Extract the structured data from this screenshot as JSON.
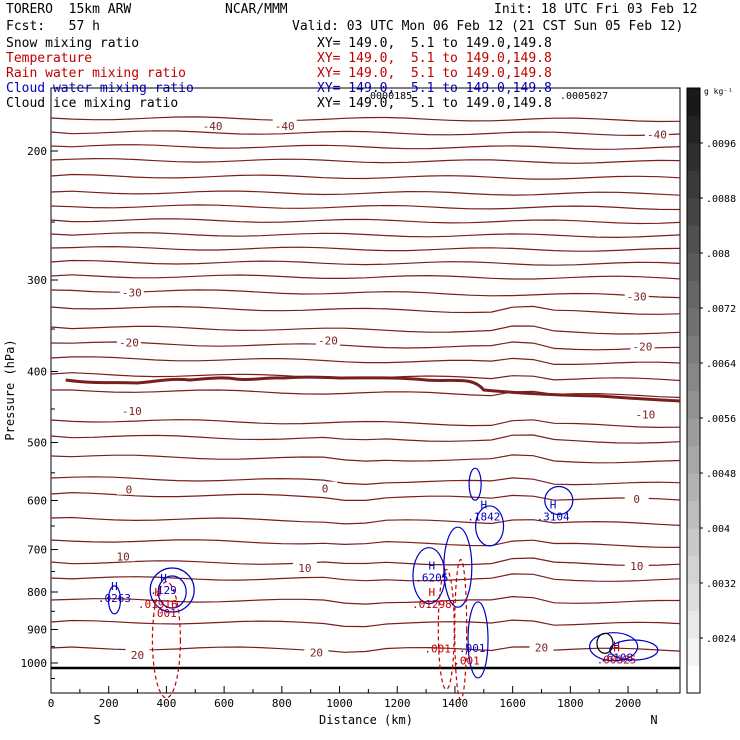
{
  "header": {
    "model": "TORERO  15km ARW",
    "center": "NCAR/MMM",
    "init": "Init: 18 UTC Fri 03 Feb 12",
    "fcst": "Fcst:   57 h",
    "valid": "Valid: 03 UTC Mon 06 Feb 12 (21 CST Sun 05 Feb 12)"
  },
  "fields": [
    {
      "name": "Snow mixing ratio",
      "xy": "",
      "color": "#000000"
    },
    {
      "name": "Temperature",
      "xy": "XY= 149.0,  5.1 to 149.0,149.8",
      "color": "#c00000"
    },
    {
      "name": "Rain water mixing ratio",
      "xy": "XY= 149.0,  5.1 to 149.0,149.8",
      "color": "#c00000"
    },
    {
      "name": "Cloud water mixing ratio",
      "xy": "XY= 149.0,  5.1 to 149.0,149.8",
      "color": "#0000c0"
    },
    {
      "name": "Cloud ice mixing ratio",
      "xy": "XY= 149.0,  5.1 to 149.0,149.8",
      "color": "#000000"
    }
  ],
  "first_xy": "XY= 149.0,  5.1 to 149.0,149.8",
  "overlay_small": [
    ".0000185",
    ".0005027"
  ],
  "chart_data": {
    "type": "contour cross-section",
    "xlabel": "Distance (km)",
    "ylabel": "Pressure (hPa)",
    "xlim": [
      0,
      2180
    ],
    "ylim": [
      1050,
      100
    ],
    "x_ticks": [
      0,
      200,
      400,
      600,
      800,
      1000,
      1200,
      1400,
      1600,
      1800,
      2000
    ],
    "y_ticks": [
      200,
      300,
      400,
      500,
      600,
      700,
      800,
      900,
      1000
    ],
    "x_end_labels": [
      "S",
      "N"
    ],
    "colorbar": {
      "unit": "g kg⁻¹",
      "ticks": [
        ".0024",
        ".0032",
        ".004",
        ".0048",
        ".0056",
        ".0064",
        ".0072",
        ".008",
        ".0088",
        ".0096"
      ],
      "range": [
        0.0016,
        0.0104
      ]
    },
    "temperature_labels": [
      {
        "text": "-40",
        "x": 560,
        "p": 185
      },
      {
        "text": "-40",
        "x": 810,
        "p": 185
      },
      {
        "text": "-40",
        "x": 2100,
        "p": 190
      },
      {
        "text": "-30",
        "x": 280,
        "p": 312
      },
      {
        "text": "-30",
        "x": 2030,
        "p": 316
      },
      {
        "text": "-20",
        "x": 270,
        "p": 365
      },
      {
        "text": "-20",
        "x": 960,
        "p": 363
      },
      {
        "text": "-20",
        "x": 2050,
        "p": 370
      },
      {
        "text": "-10",
        "x": 280,
        "p": 453
      },
      {
        "text": "-10",
        "x": 2060,
        "p": 458
      },
      {
        "text": "0",
        "x": 270,
        "p": 580
      },
      {
        "text": "0",
        "x": 950,
        "p": 578
      },
      {
        "text": "0",
        "x": 2030,
        "p": 597
      },
      {
        "text": "10",
        "x": 250,
        "p": 715
      },
      {
        "text": "10",
        "x": 880,
        "p": 742
      },
      {
        "text": "10",
        "x": 2030,
        "p": 737
      },
      {
        "text": "20",
        "x": 300,
        "p": 975
      },
      {
        "text": "20",
        "x": 920,
        "p": 968
      },
      {
        "text": "20",
        "x": 1700,
        "p": 952
      }
    ],
    "hi_markers": [
      {
        "field": "cloud water",
        "x": 220,
        "p": 795,
        "value": ".0263"
      },
      {
        "field": "cloud water",
        "x": 390,
        "p": 775,
        "value": ".129"
      },
      {
        "field": "rain water",
        "x": 370,
        "p": 810,
        "value": ".01916"
      },
      {
        "field": "cloud water",
        "x": 1320,
        "p": 745,
        "value": ".6205"
      },
      {
        "field": "rain water",
        "x": 1320,
        "p": 810,
        "value": ".01298"
      },
      {
        "field": "cloud water",
        "x": 1500,
        "p": 615,
        "value": ".1842"
      },
      {
        "field": "cloud water",
        "x": 1740,
        "p": 615,
        "value": ".3104"
      },
      {
        "field": "cloud water",
        "x": 1960,
        "p": 958,
        "value": ".6108"
      },
      {
        "field": "rain water",
        "x": 1960,
        "p": 965,
        "value": ".00325"
      }
    ],
    "contour_labels": [
      {
        "text": ".001",
        "x": 390,
        "p": 865,
        "color": "#c00000"
      },
      {
        "text": ".001",
        "x": 1340,
        "p": 968,
        "color": "#c00000"
      },
      {
        "text": ".001",
        "x": 1460,
        "p": 966,
        "color": "#0000c0"
      },
      {
        "text": ".001",
        "x": 1440,
        "p": 1005,
        "color": "#c00000"
      }
    ]
  }
}
